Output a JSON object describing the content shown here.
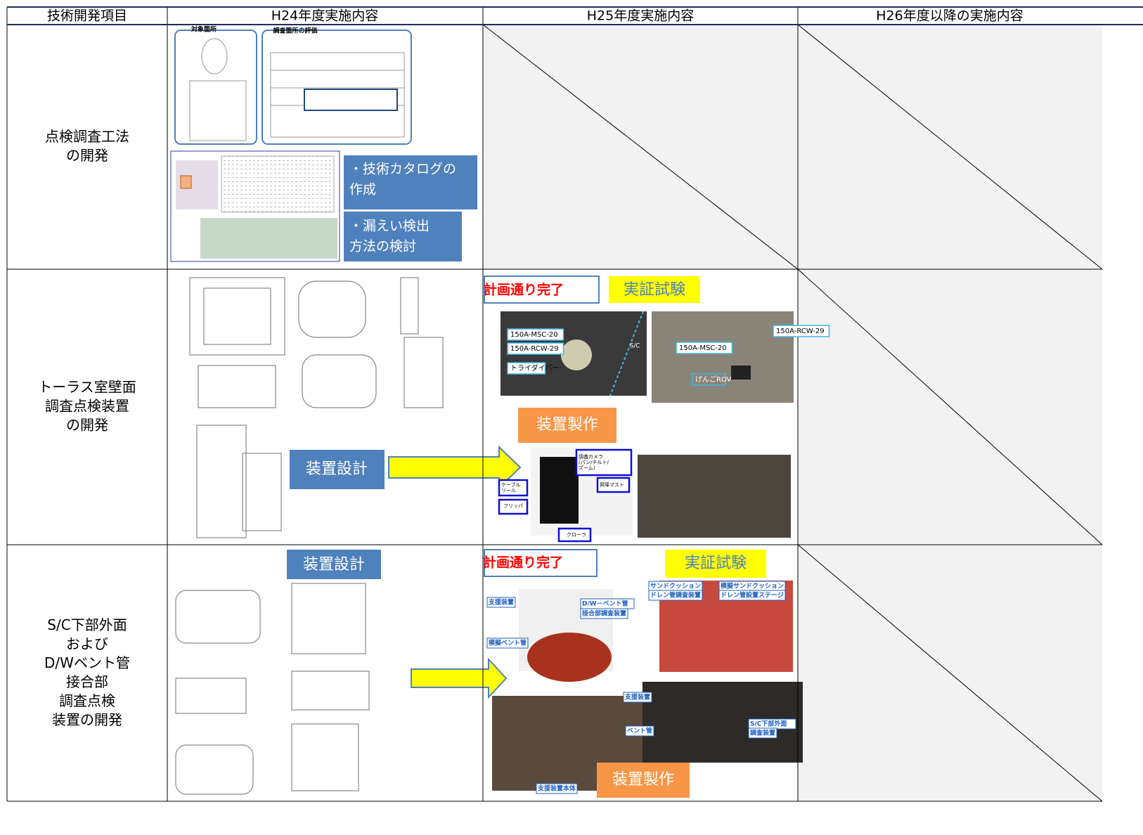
{
  "header": [
    "技術開発項目",
    "H24年度実施内容",
    "H25年度実施内容",
    "H26年度以降の実施内容"
  ],
  "rows": [
    {
      "item": [
        "点検調査工法",
        "の開発"
      ],
      "h24": {
        "doc_labels": [
          "対象箇所",
          "調査箇所の評価"
        ],
        "boxes": [
          [
            "・技術カタログの",
            "作成"
          ],
          [
            "・漏えい検出",
            "方法の検討"
          ]
        ]
      }
    },
    {
      "item": [
        "トーラス室壁面",
        "調査点検装置",
        "の開発"
      ],
      "h24": {
        "box": "装置設計"
      },
      "h25": {
        "status": "計画通り完了",
        "test": "実証試験",
        "make": "装置製作",
        "photo_labels": [
          "150A-MSC-20",
          "150A-RCW-29",
          "トライダイバー",
          "S/C",
          "150A-MSC-20",
          "150A-RCW-29",
          "げんごROV"
        ],
        "robot_labels": [
          "調査カメラ",
          "(パン/チルト/",
          "ズーム)",
          "昇降マスト",
          "ケーブル",
          "リール",
          "フリッパ",
          "クローラ"
        ]
      }
    },
    {
      "item": [
        "S/C下部外面",
        "および",
        "D/Wベント管",
        "接合部",
        "調査点検",
        "装置の開発"
      ],
      "h24": {
        "box": "装置設計"
      },
      "h25": {
        "status": "計画通り完了",
        "test": "実証試験",
        "make": "装置製作",
        "photo_labels": [
          "支援装置",
          "D/W－ベント管",
          "接合部調査装置",
          "模擬ベント管",
          "サンドクッション",
          "ドレン管調査装置",
          "模擬サンドクッション",
          "ドレン管設置ステージ",
          "支援装置",
          "ベント管",
          "S/C下部外面",
          "調査装置",
          "支援装置本体"
        ]
      }
    }
  ]
}
